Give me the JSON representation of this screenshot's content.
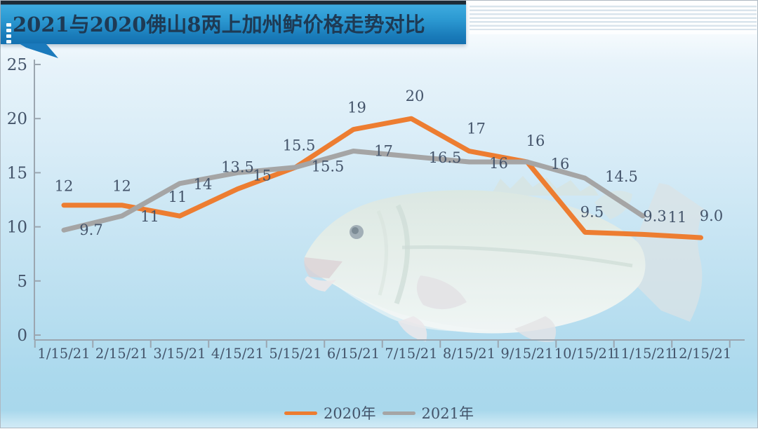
{
  "title": "2021与2020佛山8两上加州鲈价格走势对比",
  "chart_data": {
    "type": "line",
    "title": "2021与2020佛山8两上加州鲈价格走势对比",
    "categories": [
      "1/15/21",
      "2/15/21",
      "3/15/21",
      "4/15/21",
      "5/15/21",
      "6/15/21",
      "7/15/21",
      "8/15/21",
      "9/15/21",
      "10/15/21",
      "11/15/21",
      "12/15/21"
    ],
    "series": [
      {
        "name": "2020年",
        "color": "#ED7D31",
        "values": [
          12,
          12,
          11,
          13.5,
          15.5,
          19,
          20,
          17,
          16,
          9.5,
          9.3,
          9
        ],
        "point_labels": [
          "12",
          "12",
          "11",
          "13.5",
          "15.5",
          "19",
          "20",
          "17",
          "16",
          "9.5",
          "9.3",
          "9.0"
        ]
      },
      {
        "name": "2021年",
        "color": "#A5A5A5",
        "values": [
          9.7,
          11,
          14,
          15,
          15.5,
          17,
          16.5,
          16,
          16,
          14.5,
          11,
          null
        ],
        "point_labels": [
          "9.7",
          "11",
          "14",
          "15",
          "15.5",
          "17",
          "16.5",
          "16",
          "16",
          "14.5",
          "11",
          ""
        ]
      }
    ],
    "ylim": [
      0,
      25
    ],
    "ytick_labels": [
      "0",
      "5",
      "10",
      "15",
      "20",
      "25"
    ],
    "grid": false,
    "legend_position": "bottom-center",
    "axis_color": "#9BA6B0",
    "label_color": "#44546A",
    "line_width": 7
  },
  "decor": {
    "fish_watermark": "california-bass",
    "banner_top_color": "#3DABDF",
    "banner_bottom_color": "#1470B0",
    "title_text_color": "#1E3A54",
    "background_top": "#F3F9FD",
    "background_bottom": "#A9D8EC"
  }
}
